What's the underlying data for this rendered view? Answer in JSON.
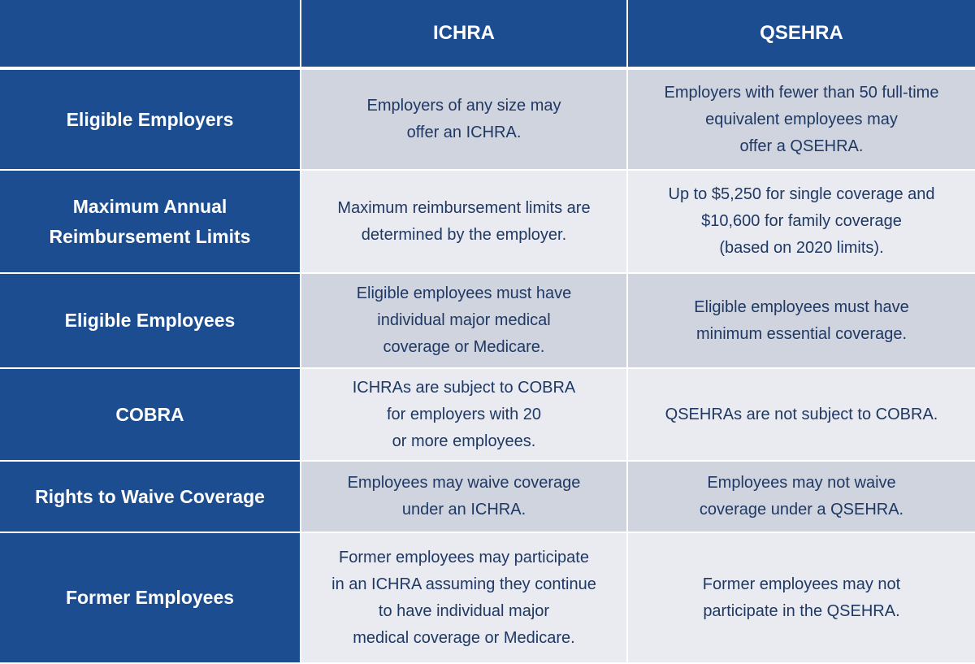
{
  "header": {
    "corner": "",
    "col1": "ICHRA",
    "col2": "QSEHRA"
  },
  "rows": [
    {
      "label": "Eligible Employers",
      "ichra": "Employers of any size may\noffer an ICHRA.",
      "qsehra": "Employers with fewer than 50 full-time\nequivalent employees may\noffer a QSEHRA."
    },
    {
      "label": "Maximum Annual\nReimbursement Limits",
      "ichra": "Maximum reimbursement limits are\ndetermined by the employer.",
      "qsehra": "Up to $5,250 for single coverage and\n$10,600 for family coverage\n(based on 2020 limits)."
    },
    {
      "label": "Eligible Employees",
      "ichra": "Eligible employees must have\nindividual major medical\ncoverage or Medicare.",
      "qsehra": "Eligible employees must have\nminimum essential coverage."
    },
    {
      "label": "COBRA",
      "ichra": "ICHRAs are subject to COBRA\nfor employers with 20\nor more employees.",
      "qsehra": "QSEHRAs are not subject to COBRA."
    },
    {
      "label": "Rights to Waive Coverage",
      "ichra": "Employees may waive coverage\nunder an ICHRA.",
      "qsehra": "Employees may not waive\ncoverage under a QSEHRA."
    },
    {
      "label": "Former Employees",
      "ichra": "Former employees may participate\nin an ICHRA assuming they continue\nto have individual major\nmedical coverage or Medicare.",
      "qsehra": "Former employees may not\nparticipate in the QSEHRA."
    }
  ],
  "colors": {
    "header_blue": "#1c4d90",
    "row_dark": "#d0d4de",
    "row_light": "#e9ebf1",
    "body_text": "#1f3864"
  }
}
